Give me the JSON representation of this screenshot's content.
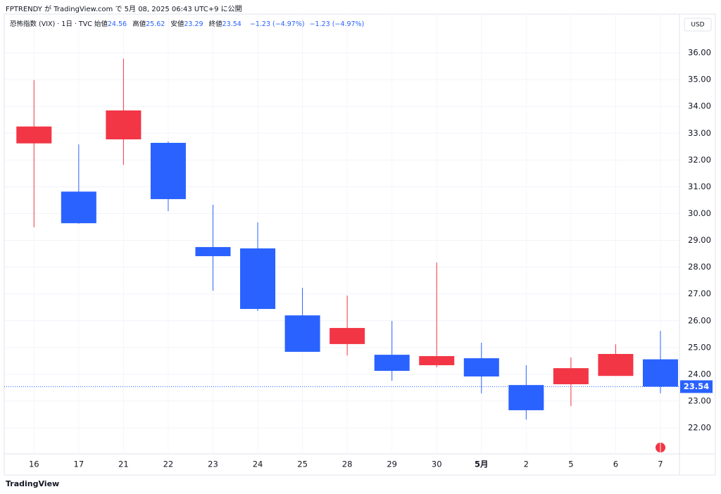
{
  "header": {
    "publish_line": "FPTRENDY が TradingView.com で 5月 08, 2025 06:43 UTC+9 に公開",
    "brand": "TradingView"
  },
  "chart_data": {
    "type": "candlestick",
    "symbol": "恐怖指数 (VIX) · 1日 · TVC",
    "legend_labels": {
      "open": "始値",
      "high": "高値",
      "low": "安値",
      "close": "終値"
    },
    "change": "−1.23 (−4.97%)",
    "change_2": "−1.23 (−4.97%)",
    "currency": "USD",
    "categories": [
      "16",
      "17",
      "21",
      "22",
      "23",
      "24",
      "25",
      "28",
      "29",
      "30",
      "5月",
      "2",
      "5",
      "6",
      "7"
    ],
    "open": [
      32.62,
      30.82,
      32.77,
      32.64,
      28.75,
      28.7,
      26.2,
      25.13,
      24.73,
      24.34,
      24.6,
      23.6,
      23.63,
      23.94,
      24.56
    ],
    "high": [
      34.98,
      32.58,
      35.78,
      32.69,
      30.33,
      29.67,
      27.23,
      26.94,
      25.99,
      28.17,
      25.18,
      24.34,
      24.63,
      25.12,
      25.62
    ],
    "low": [
      29.49,
      29.62,
      31.82,
      30.09,
      27.12,
      26.36,
      24.84,
      24.7,
      23.76,
      24.26,
      23.29,
      22.31,
      22.81,
      23.94,
      23.29
    ],
    "close": [
      33.25,
      29.64,
      33.85,
      30.54,
      28.41,
      26.44,
      24.84,
      25.73,
      24.13,
      24.68,
      23.92,
      22.66,
      24.23,
      24.76,
      23.54
    ],
    "up_color": "#f23645",
    "down_color": "#2962ff",
    "ylim": [
      21.03,
      36.79
    ],
    "yticks": [
      {
        "value": 22,
        "label": "22.00"
      },
      {
        "value": 23,
        "label": "23.00"
      },
      {
        "value": 24,
        "label": "24.00"
      },
      {
        "value": 25,
        "label": "25.00"
      },
      {
        "value": 26,
        "label": "26.00"
      },
      {
        "value": 27,
        "label": "27.00"
      },
      {
        "value": 28,
        "label": "28.00"
      },
      {
        "value": 29,
        "label": "29.00"
      },
      {
        "value": 30,
        "label": "30.00"
      },
      {
        "value": 31,
        "label": "31.00"
      },
      {
        "value": 32,
        "label": "32.00"
      },
      {
        "value": 33,
        "label": "33.00"
      },
      {
        "value": 34,
        "label": "34.00"
      },
      {
        "value": 35,
        "label": "35.00"
      },
      {
        "value": 36,
        "label": "36.00"
      }
    ],
    "grid": true
  }
}
